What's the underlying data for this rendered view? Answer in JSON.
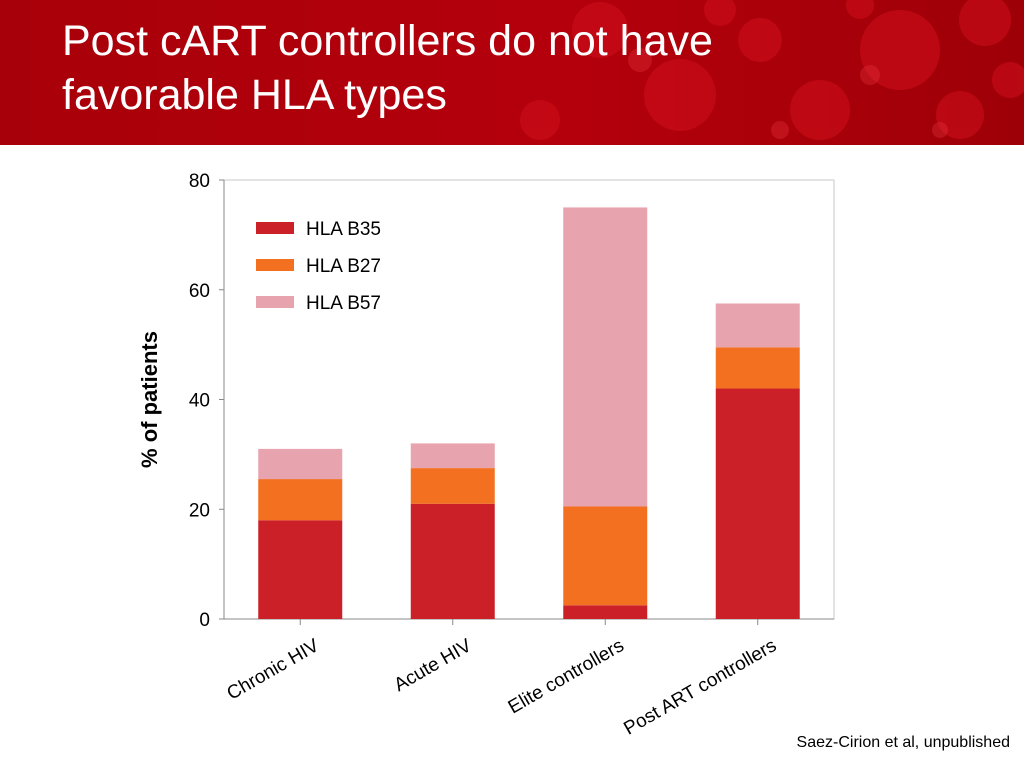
{
  "slide": {
    "title_line1": "Post cART controllers do not have",
    "title_line2": "favorable HLA types",
    "citation": "Saez-Cirion et al, unpublished"
  },
  "colors": {
    "banner": "#b0000b",
    "hla_b35": "#cc2029",
    "hla_b27": "#f37021",
    "hla_b57": "#e8a4ae"
  },
  "chart_data": {
    "type": "bar",
    "stacked": true,
    "ylabel": "% of patients",
    "xlabel": "",
    "ylim": [
      0,
      80
    ],
    "yticks": [
      0,
      20,
      40,
      60,
      80
    ],
    "categories": [
      "Chronic HIV",
      "Acute HIV",
      "Elite controllers",
      "Post ART controllers"
    ],
    "series": [
      {
        "name": "HLA B35",
        "color": "#cc2029",
        "values": [
          18,
          21,
          2.5,
          42
        ]
      },
      {
        "name": "HLA B27",
        "color": "#f37021",
        "values": [
          7.5,
          6.5,
          18,
          7.5
        ]
      },
      {
        "name": "HLA B57",
        "color": "#e8a4ae",
        "values": [
          5.5,
          4.5,
          54.5,
          8
        ]
      }
    ],
    "legend_position": "top-left inside",
    "grid": false
  }
}
